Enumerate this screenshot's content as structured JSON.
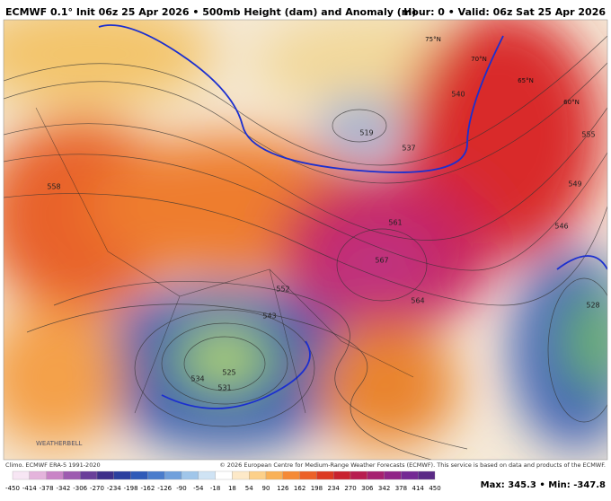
{
  "header": {
    "title": "ECMWF 0.1° Init 06z 25 Apr 2026 • 500mb Height (dam) and Anomaly (m)",
    "valid": "Hour: 0 • Valid: 06z Sat 25 Apr 2026"
  },
  "map": {
    "contour_labels": [
      528,
      519,
      525,
      531,
      534,
      537,
      543,
      546,
      552,
      558,
      564,
      567,
      561,
      555,
      549,
      540
    ],
    "latitude_labels": [
      "75°N",
      "70°N",
      "65°N",
      "60°N"
    ]
  },
  "footer": {
    "climo": "Climo. ECMWF ERA-5 1991-2020",
    "copyright": "© 2026 European Centre for Medium-Range Weather Forecasts (ECMWF). This service is based on data and products of the ECMWF.",
    "colorbar": [
      -450,
      -414,
      -378,
      -342,
      -306,
      -270,
      -234,
      -198,
      -162,
      -126,
      -90,
      -54,
      -18,
      18,
      54,
      90,
      126,
      162,
      198,
      234,
      270,
      306,
      342,
      378,
      414,
      450
    ],
    "extremes": "Max: 345.3 • Min: -347.8"
  },
  "watermark": "WEATHERBELL"
}
